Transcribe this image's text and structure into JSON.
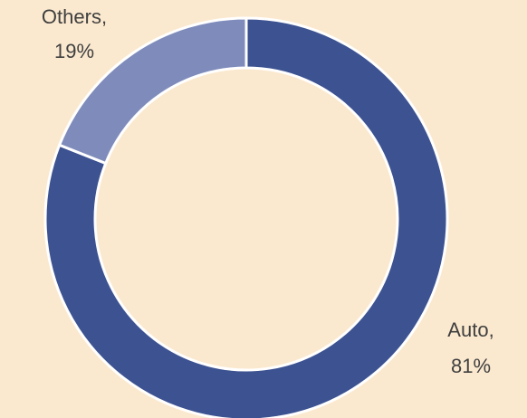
{
  "chart_data": {
    "type": "donut",
    "categories": [
      "Auto",
      "Others"
    ],
    "values": [
      81,
      19
    ],
    "value_labels": [
      "81%",
      "19%"
    ],
    "label_separator": ",",
    "colors": [
      "#3c5291",
      "#7f8cbb"
    ]
  }
}
